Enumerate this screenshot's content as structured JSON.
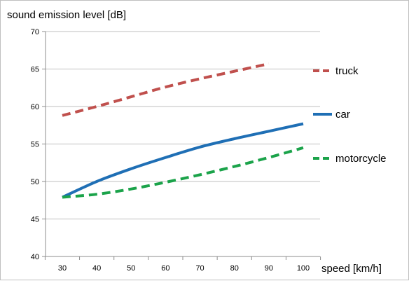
{
  "chart_data": {
    "type": "line",
    "title": "",
    "ylabel": "sound emission level [dB]",
    "xlabel": "speed [km/h]",
    "xlim": [
      30,
      100
    ],
    "ylim": [
      40,
      70
    ],
    "x_ticks": [
      30,
      40,
      50,
      60,
      70,
      80,
      90,
      100
    ],
    "y_ticks": [
      40,
      45,
      50,
      55,
      60,
      65,
      70
    ],
    "grid": "horizontal",
    "legend_position": "right",
    "series": [
      {
        "name": "truck",
        "color": "#C0504D",
        "style": "dashed",
        "x": [
          30,
          40,
          50,
          60,
          70,
          80,
          90
        ],
        "y": [
          58.8,
          60.0,
          61.3,
          62.6,
          63.7,
          64.7,
          65.7
        ]
      },
      {
        "name": "car",
        "color": "#1F6FB5",
        "style": "solid",
        "x": [
          30,
          40,
          50,
          60,
          70,
          80,
          90,
          100
        ],
        "y": [
          47.9,
          50.0,
          51.7,
          53.2,
          54.6,
          55.7,
          56.7,
          57.7
        ]
      },
      {
        "name": "motorcycle",
        "color": "#1BA34A",
        "style": "dashed",
        "x": [
          30,
          40,
          50,
          60,
          70,
          80,
          90,
          100
        ],
        "y": [
          47.9,
          48.3,
          49.0,
          49.9,
          50.9,
          52.0,
          53.2,
          54.5
        ]
      }
    ]
  }
}
